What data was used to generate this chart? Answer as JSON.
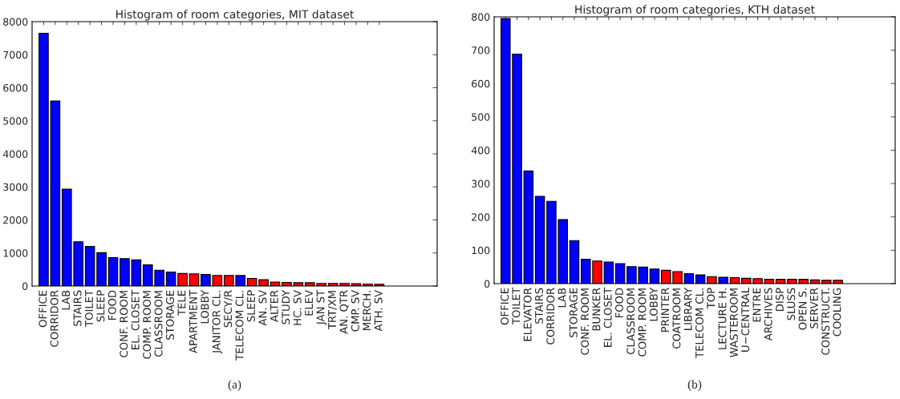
{
  "chart_data": [
    {
      "type": "bar",
      "title": "Histogram of room categories, MIT dataset",
      "categories": [
        "OFFICE",
        "CORRIDOR",
        "LAB",
        "STAIRS",
        "TOILET",
        "SLEEP",
        "FOOD",
        "CONF. ROOM",
        "EL. CLOSET",
        "COMP. ROOM",
        "CLASSROOM",
        "STORAGE",
        "TELE",
        "APARTMENT",
        "LOBBY",
        "JANITOR CL.",
        "SECY/R",
        "TELECOM CL.",
        "SLEEP",
        "AN. SV",
        "ALTER",
        "STUDY",
        "HC. SV",
        "ELEV",
        "JAN ST",
        "TRT/XM",
        "AN. QTR",
        "CMP. SV",
        "MERCH.",
        "ATH. SV"
      ],
      "values": [
        7650,
        5600,
        2930,
        1340,
        1200,
        1010,
        860,
        830,
        790,
        640,
        480,
        420,
        380,
        370,
        350,
        320,
        320,
        320,
        230,
        190,
        120,
        110,
        100,
        100,
        80,
        80,
        80,
        70,
        60,
        55
      ],
      "colors": [
        "#0000ff",
        "#0000ff",
        "#0000ff",
        "#0000ff",
        "#0000ff",
        "#0000ff",
        "#0000ff",
        "#0000ff",
        "#0000ff",
        "#0000ff",
        "#0000ff",
        "#0000ff",
        "#ff0000",
        "#ff0000",
        "#0000ff",
        "#ff0000",
        "#ff0000",
        "#0000ff",
        "#ff0000",
        "#ff0000",
        "#ff0000",
        "#ff0000",
        "#ff0000",
        "#ff0000",
        "#ff0000",
        "#ff0000",
        "#ff0000",
        "#ff0000",
        "#ff0000",
        "#ff0000"
      ],
      "ylim": [
        0,
        8000
      ],
      "yticks": [
        0,
        1000,
        2000,
        3000,
        4000,
        5000,
        6000,
        7000,
        8000
      ],
      "grid": false,
      "annotations": [
        "(a)"
      ]
    },
    {
      "type": "bar",
      "title": "Histogram of room categories, KTH dataset",
      "categories": [
        "OFFICE",
        "TOILET",
        "ELEVATOR",
        "STAIRS",
        "CORRIDOR",
        "LAB",
        "STORAGE",
        "CONF. ROOM",
        "BUNKER",
        "EL. CLOSET",
        "FOOD",
        "CLASSROOM",
        "COMP. ROOM",
        "LOBBY",
        "PRINTER",
        "COATROOM",
        "LIBRARY",
        "TELECOM CL.",
        "TOP",
        "LECTURE H.",
        "WASTEROOM",
        "U−CENTRAL",
        "ENTRE",
        "ARCHIVES",
        "DISP",
        "SLUSS",
        "OPEN S.",
        "SERVER",
        "CONSTRUCT.",
        "COOLING"
      ],
      "values": [
        795,
        688,
        338,
        262,
        247,
        192,
        129,
        73,
        68,
        65,
        60,
        51,
        50,
        44,
        40,
        36,
        30,
        26,
        21,
        19,
        18,
        16,
        15,
        13,
        13,
        13,
        13,
        11,
        10,
        10
      ],
      "colors": [
        "#0000ff",
        "#0000ff",
        "#0000ff",
        "#0000ff",
        "#0000ff",
        "#0000ff",
        "#0000ff",
        "#0000ff",
        "#ff0000",
        "#0000ff",
        "#0000ff",
        "#0000ff",
        "#0000ff",
        "#0000ff",
        "#ff0000",
        "#ff0000",
        "#0000ff",
        "#0000ff",
        "#ff0000",
        "#0000ff",
        "#ff0000",
        "#ff0000",
        "#ff0000",
        "#ff0000",
        "#ff0000",
        "#ff0000",
        "#ff0000",
        "#ff0000",
        "#ff0000",
        "#ff0000"
      ],
      "ylim": [
        0,
        800
      ],
      "yticks": [
        0,
        100,
        200,
        300,
        400,
        500,
        600,
        700,
        800
      ],
      "grid": false,
      "annotations": [
        "(b)"
      ]
    }
  ]
}
